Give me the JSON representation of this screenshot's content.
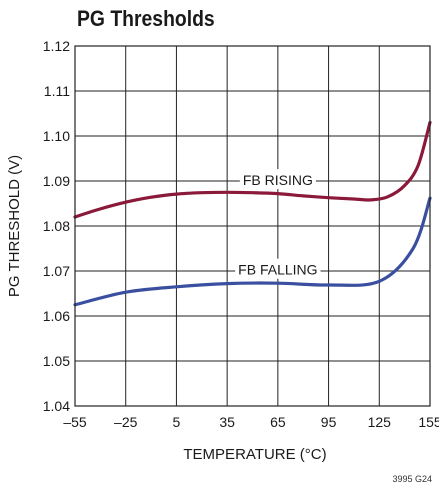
{
  "title": "PG Thresholds",
  "figure_id": "3995 G24",
  "chart_data": {
    "type": "line",
    "title": "PG Thresholds",
    "xlabel": "TEMPERATURE (°C)",
    "ylabel": "PG THRESHOLD (V)",
    "xlim": [
      -55,
      155
    ],
    "ylim": [
      1.04,
      1.12
    ],
    "x_ticks": [
      -55,
      -25,
      5,
      35,
      65,
      95,
      125,
      155
    ],
    "x_tick_labels": [
      "–55",
      "–25",
      "5",
      "35",
      "65",
      "95",
      "125",
      "155"
    ],
    "y_ticks": [
      1.04,
      1.05,
      1.06,
      1.07,
      1.08,
      1.09,
      1.1,
      1.11,
      1.12
    ],
    "y_tick_labels": [
      "1.04",
      "1.05",
      "1.06",
      "1.07",
      "1.08",
      "1.09",
      "1.10",
      "1.11",
      "1.12"
    ],
    "grid": true,
    "series": [
      {
        "name": "FB RISING",
        "color": "#8b1a3a",
        "x": [
          -55,
          -40,
          -25,
          -10,
          5,
          20,
          35,
          50,
          65,
          80,
          95,
          110,
          120,
          130,
          140,
          148,
          155
        ],
        "y": [
          1.082,
          1.0838,
          1.0853,
          1.0864,
          1.0871,
          1.0874,
          1.0875,
          1.0874,
          1.0872,
          1.0867,
          1.0863,
          1.086,
          1.0858,
          1.0865,
          1.089,
          1.0935,
          1.103
        ]
      },
      {
        "name": "FB FALLING",
        "color": "#3a4fa0",
        "x": [
          -55,
          -25,
          5,
          35,
          65,
          95,
          125,
          145,
          155
        ],
        "y": [
          1.0625,
          1.0653,
          1.0665,
          1.0672,
          1.0673,
          1.0669,
          1.0677,
          1.075,
          1.0862
        ]
      }
    ],
    "annotations": [
      {
        "text": "FB RISING",
        "x": 65,
        "y": 1.0902
      },
      {
        "text": "FB FALLING",
        "x": 65,
        "y": 1.0703
      }
    ]
  }
}
